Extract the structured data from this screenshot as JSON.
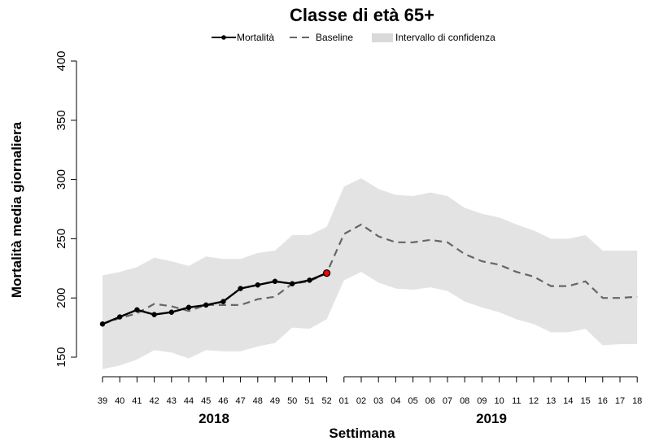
{
  "chart_data": {
    "type": "line",
    "title": "Classe di età 65+",
    "xlabel": "Settimana",
    "ylabel": "Mortalità media giornaliera",
    "ylim": [
      150,
      400
    ],
    "yticks": [
      "150",
      "200",
      "250",
      "300",
      "350",
      "400"
    ],
    "grid": false,
    "legend_position": "top-center",
    "legend": [
      {
        "name": "Mortalità",
        "kind": "line-marker",
        "color": "#000000"
      },
      {
        "name": "Baseline",
        "kind": "dashed",
        "color": "#666666"
      },
      {
        "name": "Intervallo di confidenza",
        "kind": "band",
        "color": "#d9d9d9"
      }
    ],
    "year_groups": [
      {
        "year": "2018",
        "weeks": [
          "39",
          "40",
          "41",
          "42",
          "43",
          "44",
          "45",
          "46",
          "47",
          "48",
          "49",
          "50",
          "51",
          "52"
        ]
      },
      {
        "year": "2019",
        "weeks": [
          "01",
          "02",
          "03",
          "04",
          "05",
          "06",
          "07",
          "08",
          "09",
          "10",
          "11",
          "12",
          "13",
          "14",
          "15",
          "16",
          "17",
          "18"
        ]
      }
    ],
    "series": [
      {
        "name": "Mortalità",
        "color": "#000000",
        "last_point_color": "#ff0000",
        "values": [
          178,
          184,
          190,
          186,
          188,
          192,
          194,
          197,
          208,
          211,
          214,
          212,
          215,
          221
        ]
      },
      {
        "name": "Baseline",
        "color": "#666666",
        "style": "dashed",
        "values": [
          178,
          183,
          187,
          195,
          193,
          189,
          194,
          194,
          194,
          199,
          201,
          212,
          214,
          221,
          254,
          262,
          252,
          247,
          247,
          249,
          247,
          237,
          231,
          228,
          222,
          218,
          210,
          210,
          214,
          200,
          200,
          201
        ]
      },
      {
        "name": "Intervallo di confidenza",
        "color": "#e3e3e3",
        "upper": [
          219,
          222,
          226,
          234,
          231,
          227,
          235,
          233,
          233,
          238,
          240,
          253,
          253,
          260,
          294,
          301,
          292,
          287,
          286,
          289,
          286,
          276,
          271,
          268,
          262,
          257,
          250,
          250,
          253,
          240,
          240,
          240
        ],
        "lower": [
          140,
          143,
          148,
          156,
          154,
          149,
          156,
          155,
          155,
          159,
          162,
          175,
          174,
          182,
          215,
          222,
          213,
          208,
          207,
          209,
          206,
          197,
          192,
          188,
          182,
          178,
          171,
          171,
          174,
          160,
          161,
          161
        ]
      }
    ]
  }
}
